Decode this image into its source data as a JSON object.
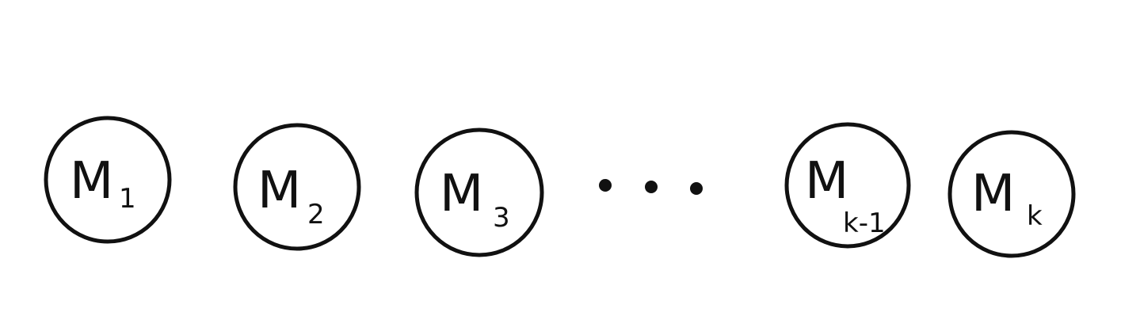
{
  "diagram": {
    "stroke_color": "#111111",
    "background_color": "#ffffff",
    "nodes": [
      {
        "main": "M",
        "sub": "1"
      },
      {
        "main": "M",
        "sub": "2"
      },
      {
        "main": "M",
        "sub": "3"
      },
      {
        "main": "M",
        "sub": "k-1"
      },
      {
        "main": "M",
        "sub": "k"
      }
    ],
    "ellipsis_dot_count": 3
  }
}
